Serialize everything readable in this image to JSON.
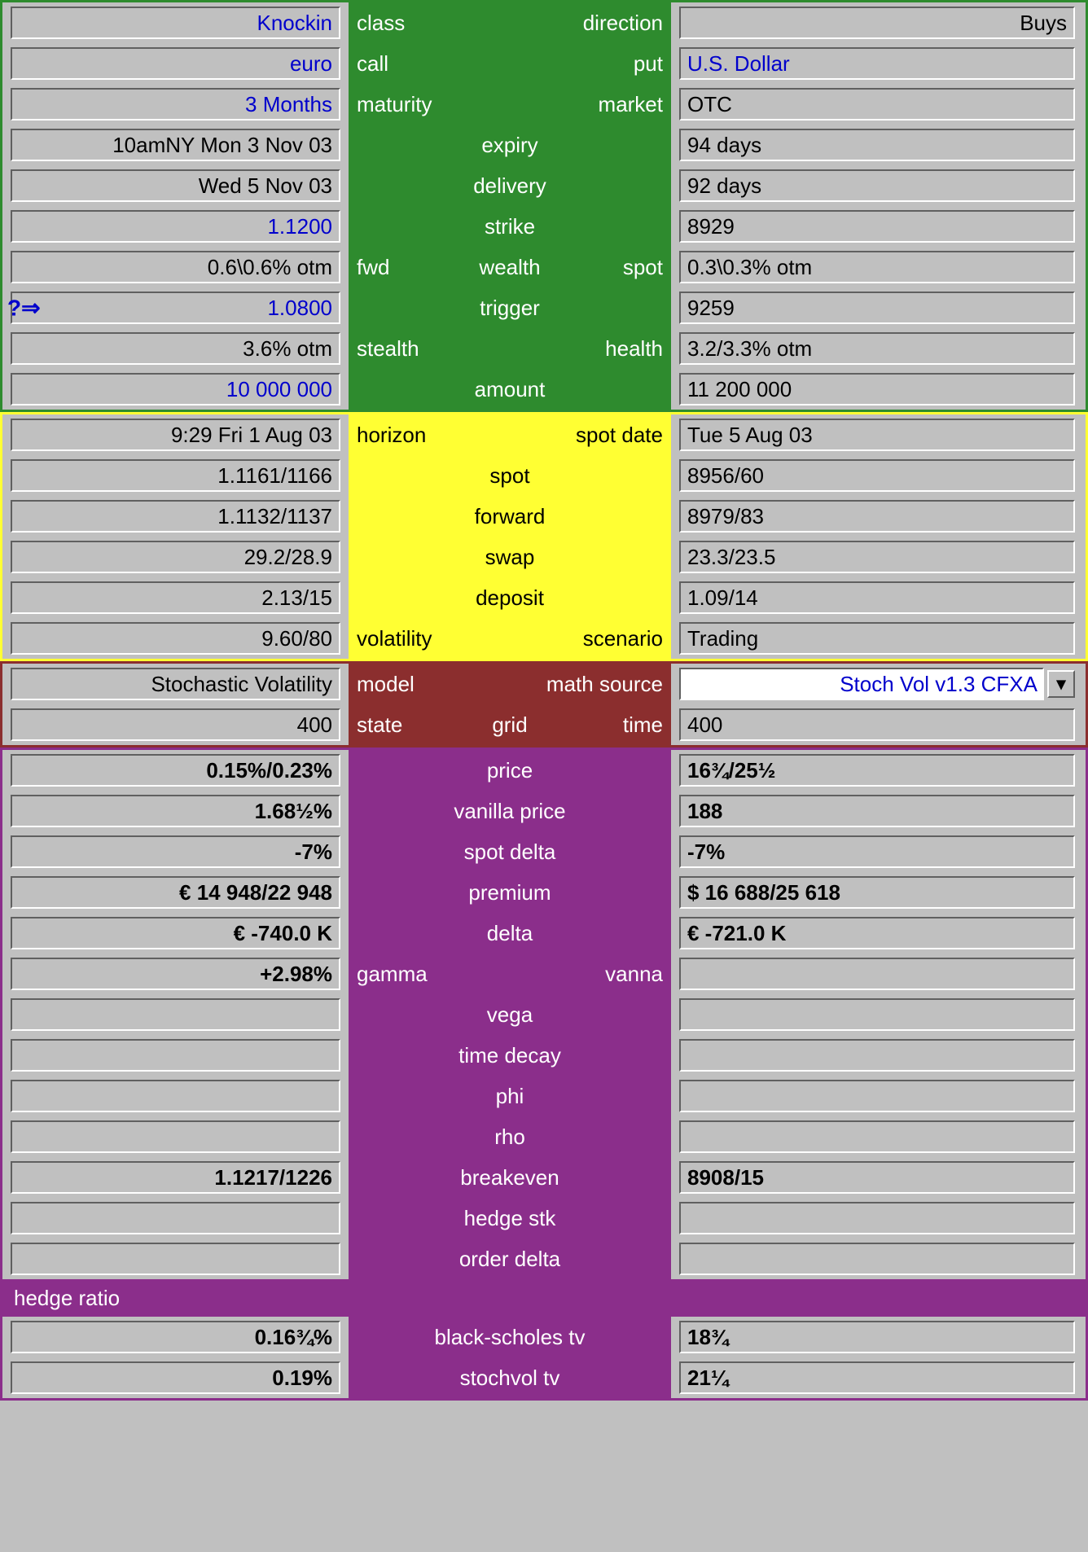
{
  "colors": {
    "green": "#2e8b2e",
    "yellow": "#ffff33",
    "brown": "#8b2e2e",
    "purple": "#8b2e8b",
    "panel_bg": "#c0c0c0",
    "link_blue": "#0000cc",
    "text_black": "#000000",
    "text_white": "#ffffff"
  },
  "sections": {
    "green": {
      "rows": [
        {
          "left": "Knockin",
          "left_color": "blue",
          "mid_left": "class",
          "mid_center": "",
          "mid_right": "direction",
          "right": "Buys",
          "right_align": "right",
          "right_color": "black"
        },
        {
          "left": "euro",
          "left_color": "blue",
          "mid_left": "call",
          "mid_center": "",
          "mid_right": "put",
          "right": "U.S. Dollar",
          "right_color": "blue"
        },
        {
          "left": "3 Months",
          "left_color": "blue",
          "mid_left": "maturity",
          "mid_center": "",
          "mid_right": "market",
          "right": "OTC",
          "right_color": "black"
        },
        {
          "left": "10amNY Mon 3 Nov 03",
          "left_color": "black",
          "mid_left": "",
          "mid_center": "expiry",
          "mid_right": "",
          "right": "94 days",
          "right_color": "black"
        },
        {
          "left": "Wed 5 Nov 03",
          "left_color": "black",
          "mid_left": "",
          "mid_center": "delivery",
          "mid_right": "",
          "right": "92 days",
          "right_color": "black"
        },
        {
          "left": "1.1200",
          "left_color": "blue",
          "mid_left": "",
          "mid_center": "strike",
          "mid_right": "",
          "right": "8929",
          "right_color": "black"
        },
        {
          "left": "0.6\\0.6% otm",
          "left_color": "black",
          "mid_left": "fwd",
          "mid_center": "wealth",
          "mid_right": "spot",
          "right": "0.3\\0.3% otm",
          "right_color": "black"
        },
        {
          "left": "1.0800",
          "left_color": "blue",
          "left_icon": "question-arrow",
          "mid_left": "",
          "mid_center": "trigger",
          "mid_right": "",
          "right": "9259",
          "right_color": "black"
        },
        {
          "left": "3.6% otm",
          "left_color": "black",
          "mid_left": "stealth",
          "mid_center": "",
          "mid_right": "health",
          "right": "3.2/3.3% otm",
          "right_color": "black"
        },
        {
          "left": "10 000 000",
          "left_color": "blue",
          "mid_left": "",
          "mid_center": "amount",
          "mid_right": "",
          "right": "11 200 000",
          "right_color": "black"
        }
      ]
    },
    "yellow": {
      "rows": [
        {
          "left": "9:29 Fri 1 Aug 03",
          "mid_left": "horizon",
          "mid_center": "",
          "mid_right": "spot date",
          "right": "Tue 5 Aug 03"
        },
        {
          "left": "1.1161/1166",
          "mid_left": "",
          "mid_center": "spot",
          "mid_right": "",
          "right": "8956/60"
        },
        {
          "left": "1.1132/1137",
          "mid_left": "",
          "mid_center": "forward",
          "mid_right": "",
          "right": "8979/83"
        },
        {
          "left": "29.2/28.9",
          "mid_left": "",
          "mid_center": "swap",
          "mid_right": "",
          "right": "23.3/23.5"
        },
        {
          "left": "2.13/15",
          "mid_left": "",
          "mid_center": "deposit",
          "mid_right": "",
          "right": "1.09/14"
        },
        {
          "left": "9.60/80",
          "mid_left": "volatility",
          "mid_center": "",
          "mid_right": "scenario",
          "right": "Trading"
        }
      ]
    },
    "brown": {
      "rows": [
        {
          "left": "Stochastic Volatility",
          "mid_left": "model",
          "mid_center": "",
          "mid_right": "math source",
          "right": "Stoch Vol v1.3 CFXA",
          "right_is_dropdown": true
        },
        {
          "left": "400",
          "mid_left": "state",
          "mid_center": "grid",
          "mid_right": "time",
          "right": "400"
        }
      ]
    },
    "purple": {
      "rows": [
        {
          "left": "0.15%/0.23%",
          "mid_center": "price",
          "right": "16¾/25½"
        },
        {
          "left": "1.68½%",
          "mid_center": "vanilla price",
          "right": "188"
        },
        {
          "left": "-7%",
          "mid_center": "spot delta",
          "right": "-7%"
        },
        {
          "left": "€ 14 948/22 948",
          "mid_center": "premium",
          "right": "$ 16 688/25 618"
        },
        {
          "left": "€ -740.0 K",
          "mid_center": "delta",
          "right": "€ -721.0 K"
        },
        {
          "left": "+2.98%",
          "mid_left": "gamma",
          "mid_center": "",
          "mid_right": "vanna",
          "right": ""
        },
        {
          "left": "",
          "mid_center": "vega",
          "right": ""
        },
        {
          "left": "",
          "mid_center": "time decay",
          "right": ""
        },
        {
          "left": "",
          "mid_center": "phi",
          "right": ""
        },
        {
          "left": "",
          "mid_center": "rho",
          "right": ""
        },
        {
          "left": "1.1217/1226",
          "mid_center": "breakeven",
          "right": "8908/15"
        },
        {
          "left": "",
          "mid_center": "hedge stk",
          "right": ""
        },
        {
          "left": "",
          "mid_center": "order delta",
          "right": ""
        },
        {
          "full_row_label": "hedge ratio"
        },
        {
          "left": "0.16¾%",
          "mid_center": "black-scholes tv",
          "right": "18¾"
        },
        {
          "left": "0.19%",
          "mid_center": "stochvol tv",
          "right": "21¼"
        }
      ]
    }
  },
  "icons": {
    "question_arrow": "?⇒",
    "dropdown_arrow": "▾"
  }
}
